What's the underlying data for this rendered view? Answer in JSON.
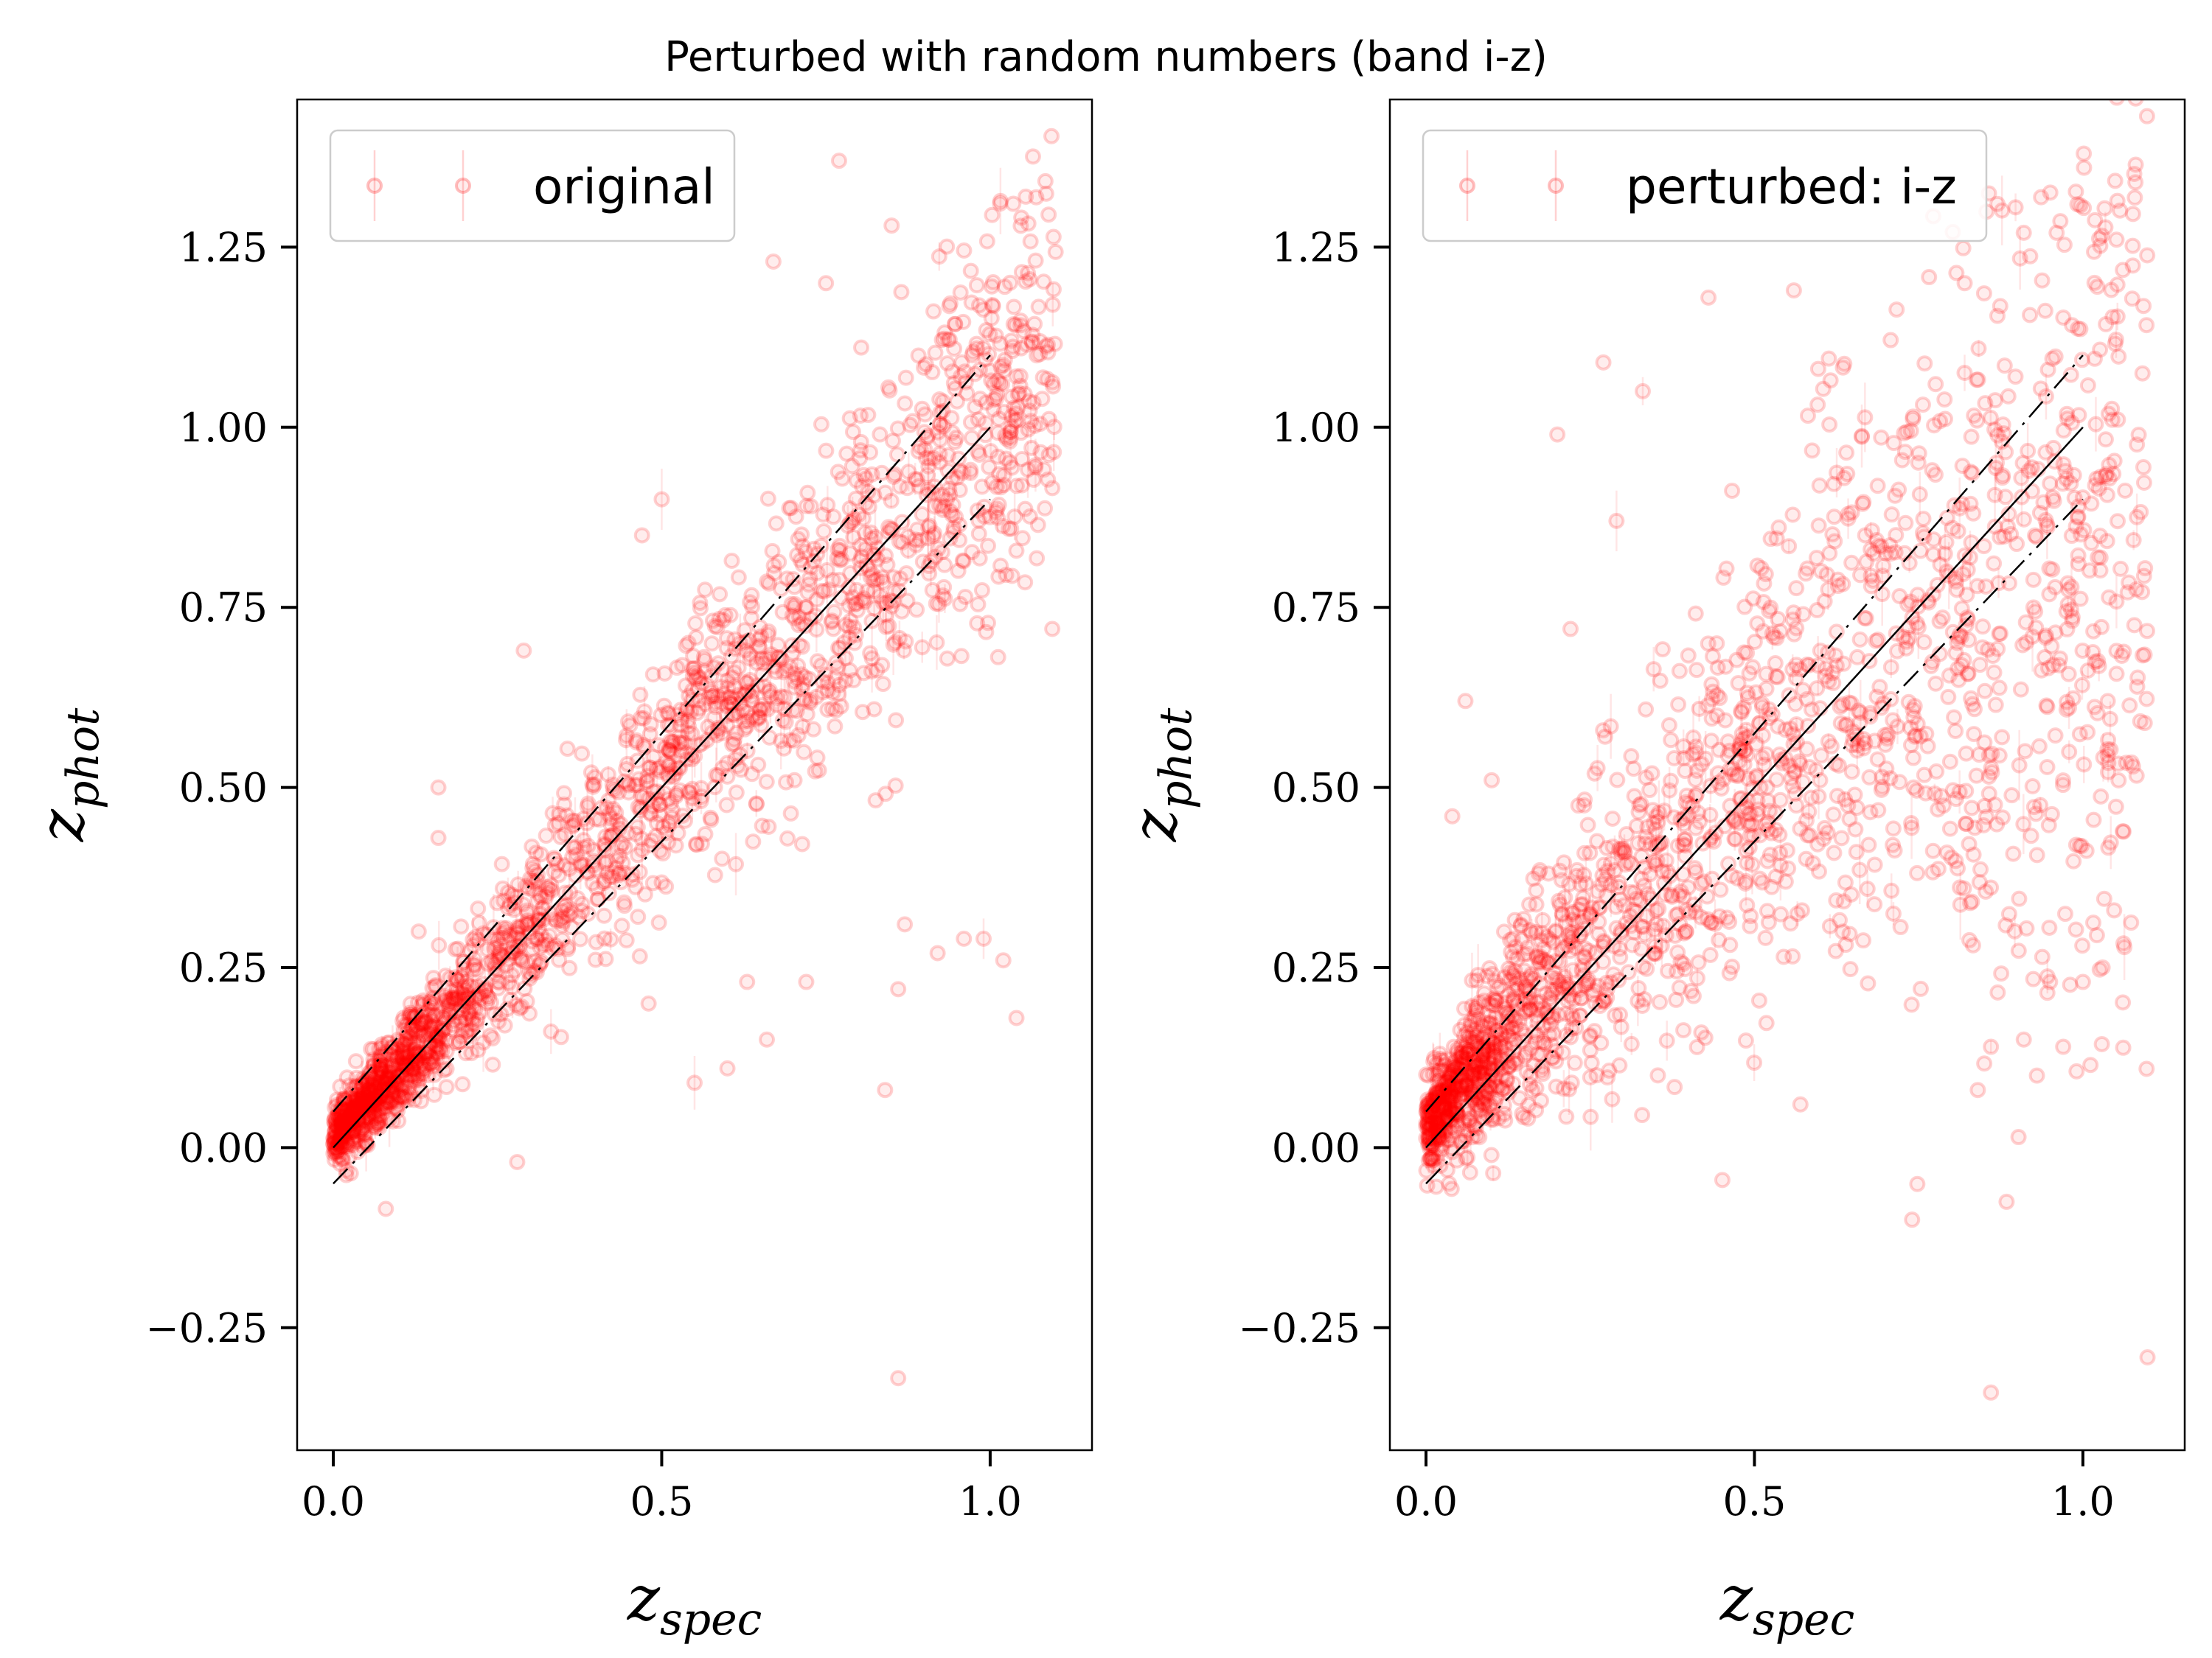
{
  "figure": {
    "suptitle": "Perturbed with random numbers (band i-z)",
    "colors": {
      "point": "#ff0000",
      "line": "#000000",
      "frame": "#000000",
      "legend_border": "#cccccc"
    }
  },
  "chart_data": [
    {
      "type": "scatter",
      "legend": "original",
      "xlabel_main": "z",
      "xlabel_sub": "spec",
      "ylabel_main": "z",
      "ylabel_sub": "phot",
      "xlim": [
        -0.055,
        1.155
      ],
      "ylim": [
        -0.42,
        1.455
      ],
      "xticks": [
        0.0,
        0.5,
        1.0
      ],
      "xtick_labels": [
        "0.0",
        "0.5",
        "1.0"
      ],
      "yticks": [
        -0.25,
        0.0,
        0.25,
        0.5,
        0.75,
        1.0,
        1.25
      ],
      "ytick_labels": [
        "−0.25",
        "0.00",
        "0.25",
        "0.50",
        "0.75",
        "1.00",
        "1.25"
      ],
      "reference_lines": {
        "identity": [
          [
            0,
            0
          ],
          [
            1,
            1
          ]
        ],
        "upper": [
          [
            0,
            0.05
          ],
          [
            1,
            1.1
          ]
        ],
        "lower": [
          [
            0,
            -0.05
          ],
          [
            1,
            0.9
          ]
        ]
      },
      "legend_location": "upper left",
      "grid": false,
      "marker": "open circle, low alpha, with vertical error bars",
      "n_points_approx": 2000,
      "scatter_model": {
        "seed": 11,
        "n": 2000,
        "xmax": 1.1,
        "sigma_low": 0.02,
        "sigma_slope": 0.12,
        "y_shift": 0.01
      },
      "outliers": [
        {
          "x": 0.77,
          "y": 1.37
        },
        {
          "x": 0.85,
          "y": 1.28
        },
        {
          "x": 0.67,
          "y": 1.23
        },
        {
          "x": 0.75,
          "y": 1.2
        },
        {
          "x": 0.86,
          "y": -0.32
        },
        {
          "x": 0.84,
          "y": 0.08
        },
        {
          "x": 1.04,
          "y": 0.18
        },
        {
          "x": 0.55,
          "y": 0.09
        },
        {
          "x": 0.6,
          "y": 0.11
        },
        {
          "x": 0.28,
          "y": -0.02
        },
        {
          "x": 0.08,
          "y": -0.085
        },
        {
          "x": 0.16,
          "y": 0.43
        },
        {
          "x": 0.13,
          "y": 0.3
        },
        {
          "x": 0.72,
          "y": 0.23
        },
        {
          "x": 0.86,
          "y": 0.22
        },
        {
          "x": 0.96,
          "y": 0.29
        },
        {
          "x": 0.99,
          "y": 0.29
        },
        {
          "x": 0.92,
          "y": 0.27
        },
        {
          "x": 1.02,
          "y": 0.26
        },
        {
          "x": 0.87,
          "y": 0.31
        },
        {
          "x": 0.66,
          "y": 0.15
        },
        {
          "x": 0.63,
          "y": 0.23
        },
        {
          "x": 0.48,
          "y": 0.2
        },
        {
          "x": 0.29,
          "y": 0.69
        },
        {
          "x": 0.16,
          "y": 0.5
        },
        {
          "x": 0.5,
          "y": 0.9
        },
        {
          "x": 0.47,
          "y": 0.85
        }
      ]
    },
    {
      "type": "scatter",
      "legend": "perturbed: i-z",
      "xlabel_main": "z",
      "xlabel_sub": "spec",
      "ylabel_main": "z",
      "ylabel_sub": "phot",
      "xlim": [
        -0.055,
        1.155
      ],
      "ylim": [
        -0.42,
        1.455
      ],
      "xticks": [
        0.0,
        0.5,
        1.0
      ],
      "xtick_labels": [
        "0.0",
        "0.5",
        "1.0"
      ],
      "yticks": [
        -0.25,
        0.0,
        0.25,
        0.5,
        0.75,
        1.0,
        1.25
      ],
      "ytick_labels": [
        "−0.25",
        "0.00",
        "0.25",
        "0.50",
        "0.75",
        "1.00",
        "1.25"
      ],
      "reference_lines": {
        "identity": [
          [
            0,
            0
          ],
          [
            1,
            1
          ]
        ],
        "upper": [
          [
            0,
            0.05
          ],
          [
            1,
            1.1
          ]
        ],
        "lower": [
          [
            0,
            -0.05
          ],
          [
            1,
            0.9
          ]
        ]
      },
      "legend_location": "upper left",
      "grid": false,
      "marker": "open circle, low alpha, with vertical error bars",
      "n_points_approx": 2000,
      "scatter_model": {
        "seed": 29,
        "n": 2000,
        "xmax": 1.1,
        "sigma_low": 0.03,
        "sigma_slope": 0.28,
        "y_shift": 0.03,
        "flatten_above": 0.6,
        "flatten_slope": 0.45
      },
      "outliers": [
        {
          "x": 1.08,
          "y": 1.34
        },
        {
          "x": 0.87,
          "y": 1.31
        },
        {
          "x": 0.91,
          "y": 1.27
        },
        {
          "x": 0.96,
          "y": 1.27
        },
        {
          "x": 0.82,
          "y": 1.2
        },
        {
          "x": 0.56,
          "y": 1.19
        },
        {
          "x": 0.43,
          "y": 1.18
        },
        {
          "x": 0.29,
          "y": 0.87
        },
        {
          "x": 0.2,
          "y": 0.99
        },
        {
          "x": 0.86,
          "y": -0.34
        },
        {
          "x": 0.74,
          "y": -0.1
        },
        {
          "x": 0.95,
          "y": 0.23
        },
        {
          "x": 1.0,
          "y": 0.23
        },
        {
          "x": 1.03,
          "y": 0.25
        },
        {
          "x": 0.91,
          "y": 0.15
        },
        {
          "x": 0.93,
          "y": 0.1
        },
        {
          "x": 0.86,
          "y": 0.14
        },
        {
          "x": 0.84,
          "y": 0.08
        },
        {
          "x": 0.97,
          "y": 0.14
        },
        {
          "x": 0.57,
          "y": 0.06
        },
        {
          "x": 0.06,
          "y": 0.62
        },
        {
          "x": 0.1,
          "y": 0.51
        },
        {
          "x": 0.04,
          "y": 0.46
        },
        {
          "x": 0.22,
          "y": 0.72
        },
        {
          "x": 0.27,
          "y": 1.09
        },
        {
          "x": 0.33,
          "y": 1.05
        }
      ]
    }
  ]
}
